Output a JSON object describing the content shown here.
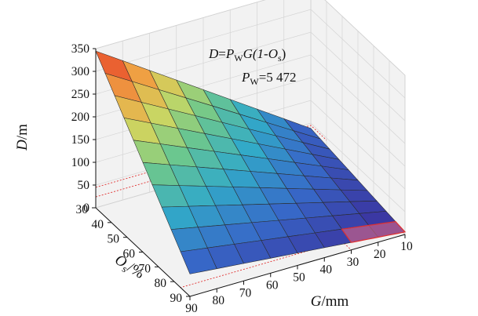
{
  "chart_data": {
    "type": "surface3d",
    "formula": "D=P_W G(1-O_s)",
    "annotation": {
      "formula_parts": [
        "D",
        "=",
        "P",
        "W",
        "G(1-",
        "O",
        "s",
        ")"
      ],
      "pw_parts": [
        "P",
        "W",
        "=5 472"
      ]
    },
    "constants": {
      "P_W": 5472,
      "P_W_label": "=5 472"
    },
    "axes": {
      "z": {
        "label_main": "D",
        "label_unit": "/m",
        "range": [
          0,
          350
        ],
        "ticks": [
          0,
          50,
          100,
          150,
          200,
          250,
          300,
          350
        ]
      },
      "g": {
        "label_main": "G",
        "label_unit": "/mm",
        "range": [
          10,
          90
        ],
        "ticks": [
          90,
          80,
          70,
          60,
          50,
          40,
          30,
          20,
          10
        ]
      },
      "o": {
        "label_main": "O",
        "label_sub": "s",
        "label_unit": "/%",
        "range": [
          30,
          90
        ],
        "ticks": [
          30,
          40,
          50,
          60,
          70,
          80,
          90
        ]
      }
    },
    "grid": {
      "G": [
        10,
        90,
        10
      ],
      "Os": [
        30,
        90,
        6
      ]
    },
    "highlight": {
      "G": [
        10,
        30
      ],
      "Os": [
        84,
        90
      ],
      "D_max": 5.5
    },
    "guides_D": [
      24,
      45
    ]
  }
}
